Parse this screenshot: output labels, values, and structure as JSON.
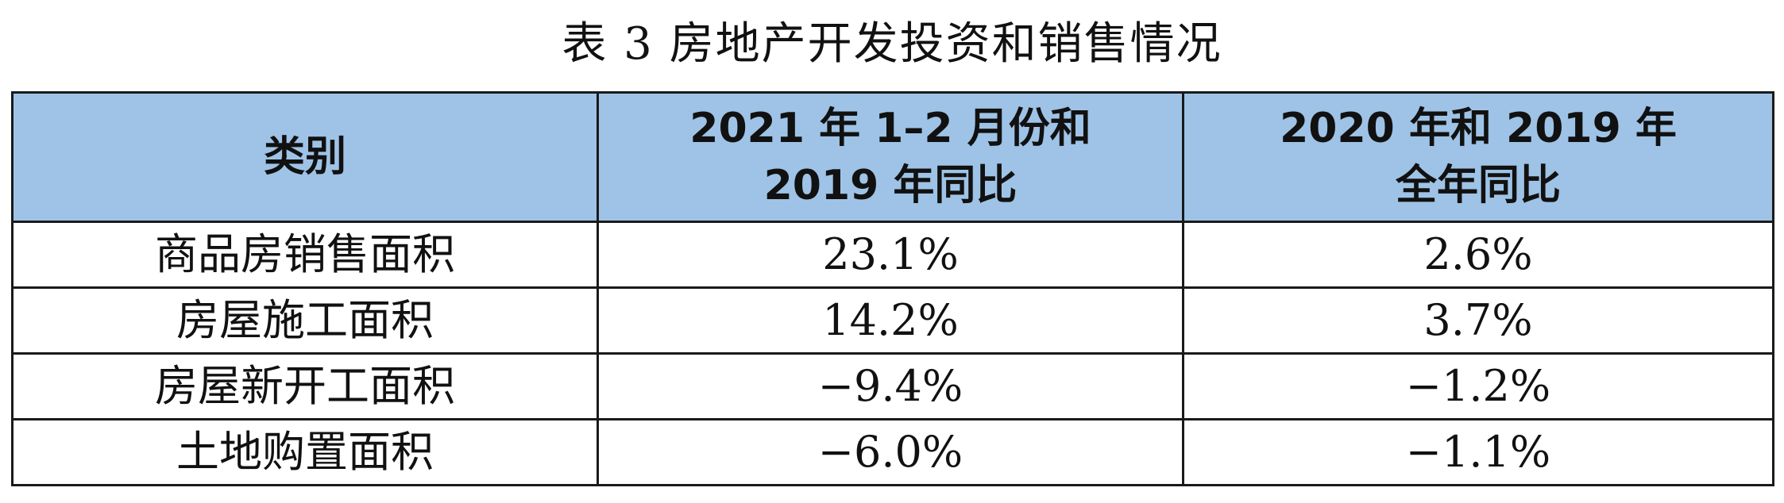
{
  "title": "表 3  房地产开发投资和销售情况",
  "table": {
    "headers": {
      "category": "类别",
      "col1_line1": "2021 年 1–2 月份和",
      "col1_line2": "2019 年同比",
      "col2_line1": "2020 年和 2019 年",
      "col2_line2": "全年同比"
    },
    "rows": [
      {
        "category": "商品房销售面积",
        "value_2021": "23.1%",
        "value_2020": "2.6%"
      },
      {
        "category": "房屋施工面积",
        "value_2021": "14.2%",
        "value_2020": "3.7%"
      },
      {
        "category": "房屋新开工面积",
        "value_2021": "−9.4%",
        "value_2020": "−1.2%"
      },
      {
        "category": "土地购置面积",
        "value_2021": "−6.0%",
        "value_2020": "−1.1%"
      }
    ]
  }
}
